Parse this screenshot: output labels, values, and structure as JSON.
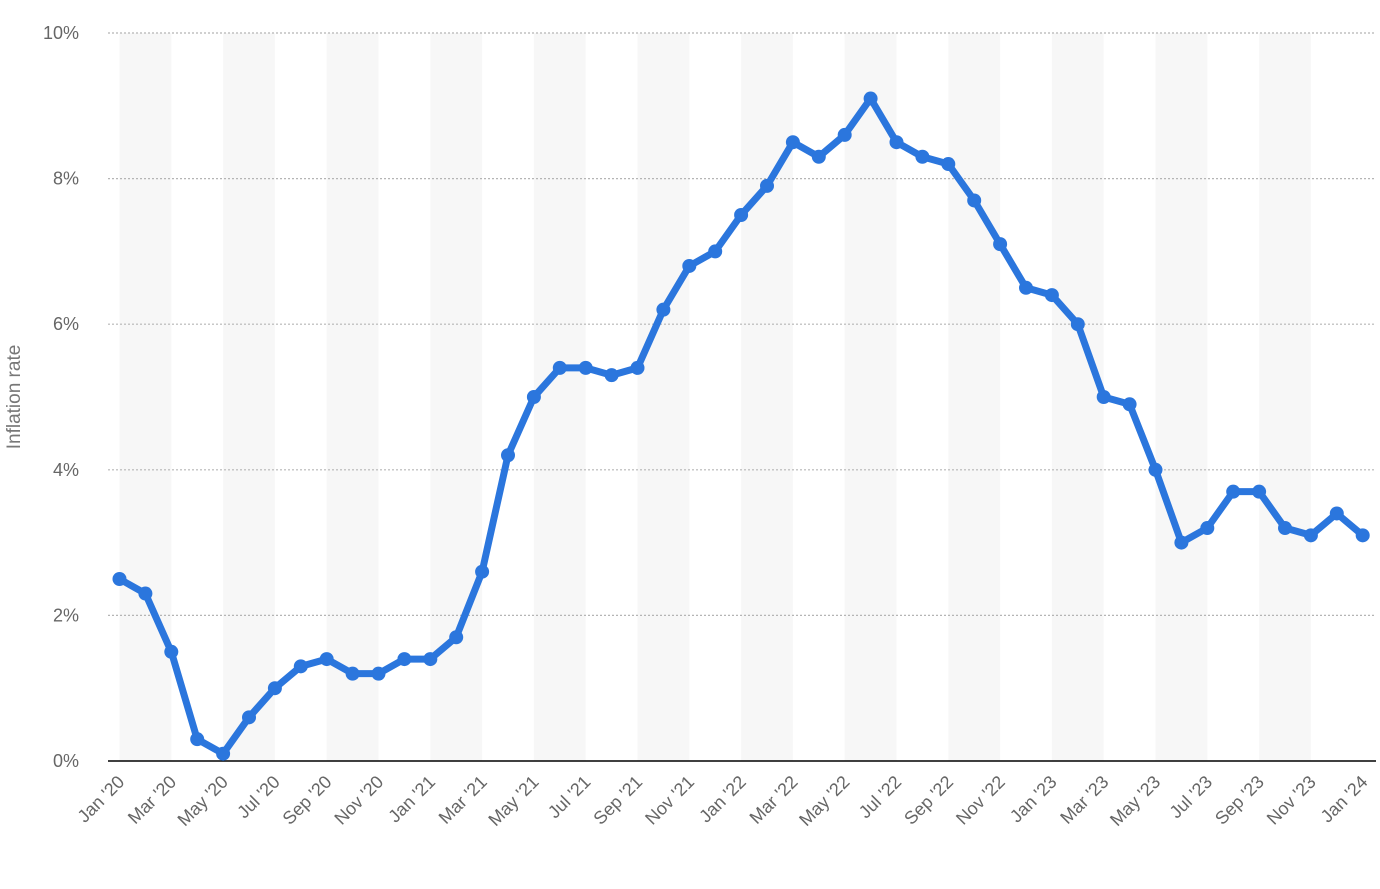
{
  "chart_data": {
    "type": "line",
    "ylabel": "Inflation rate",
    "ylim": [
      0,
      10
    ],
    "y_ticks": [
      0,
      2,
      4,
      6,
      8,
      10
    ],
    "y_tick_labels": [
      "0%",
      "2%",
      "4%",
      "6%",
      "8%",
      "10%"
    ],
    "grid": true,
    "x_tick_labels": [
      "Jan '20",
      "Mar '20",
      "May '20",
      "Jul '20",
      "Sep '20",
      "Nov '20",
      "Jan '21",
      "Mar '21",
      "May '21",
      "Jul '21",
      "Sep '21",
      "Nov '21",
      "Jan '22",
      "Mar '22",
      "May '22",
      "Jul '22",
      "Sep '22",
      "Nov '22",
      "Jan '23",
      "Mar '23",
      "May '23",
      "Jul '23",
      "Sep '23",
      "Nov '23",
      "Jan '24"
    ],
    "x": [
      "Jan '20",
      "Feb '20",
      "Mar '20",
      "Apr '20",
      "May '20",
      "Jun '20",
      "Jul '20",
      "Aug '20",
      "Sep '20",
      "Oct '20",
      "Nov '20",
      "Dec '20",
      "Jan '21",
      "Feb '21",
      "Mar '21",
      "Apr '21",
      "May '21",
      "Jun '21",
      "Jul '21",
      "Aug '21",
      "Sep '21",
      "Oct '21",
      "Nov '21",
      "Dec '21",
      "Jan '22",
      "Feb '22",
      "Mar '22",
      "Apr '22",
      "May '22",
      "Jun '22",
      "Jul '22",
      "Aug '22",
      "Sep '22",
      "Oct '22",
      "Nov '22",
      "Dec '22",
      "Jan '23",
      "Feb '23",
      "Mar '23",
      "Apr '23",
      "May '23",
      "Jun '23",
      "Jul '23",
      "Aug '23",
      "Sep '23",
      "Oct '23",
      "Nov '23",
      "Dec '23",
      "Jan '24"
    ],
    "series": [
      {
        "color": "#2b76dd",
        "values": [
          2.5,
          2.3,
          1.5,
          0.3,
          0.1,
          0.6,
          1.0,
          1.3,
          1.4,
          1.2,
          1.2,
          1.4,
          1.4,
          1.7,
          2.6,
          4.2,
          5.0,
          5.4,
          5.4,
          5.3,
          5.4,
          6.2,
          6.8,
          7.0,
          7.5,
          7.9,
          8.5,
          8.3,
          8.6,
          9.1,
          8.5,
          8.3,
          8.2,
          7.7,
          7.1,
          6.5,
          6.4,
          6.0,
          5.0,
          4.9,
          4.0,
          3.0,
          3.2,
          3.7,
          3.7,
          3.2,
          3.1,
          3.4,
          3.1
        ]
      }
    ],
    "colors": {
      "line": "#2b76dd",
      "grid": "#b5b5b5",
      "band": "#f7f7f7",
      "axis": "#000000",
      "tick_text": "#666666"
    }
  }
}
